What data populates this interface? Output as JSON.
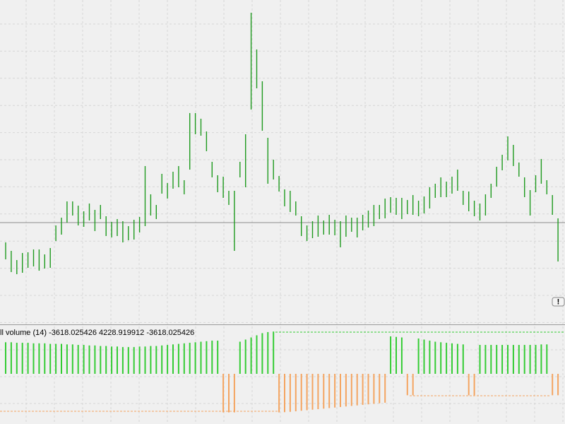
{
  "chart_data": [
    {
      "type": "ohlc",
      "color": "#1e9a1e",
      "ylim": [
        0,
        455
      ],
      "price_line": 140,
      "price_line_color": "#8a8a8a",
      "high": [
        112,
        100,
        87,
        97,
        98,
        102,
        102,
        95,
        104,
        136,
        147,
        170,
        170,
        164,
        156,
        167,
        158,
        165,
        149,
        141,
        145,
        142,
        135,
        144,
        148,
        220,
        180,
        165,
        209,
        196,
        212,
        220,
        200,
        295,
        295,
        287,
        269,
        226,
        207,
        205,
        185,
        185,
        226,
        265,
        437,
        385,
        340,
        260,
        229,
        206,
        187,
        185,
        170,
        149,
        136,
        142,
        150,
        143,
        151,
        144,
        142,
        150,
        147,
        147,
        151,
        157,
        165,
        165,
        174,
        176,
        175,
        175,
        172,
        179,
        171,
        177,
        190,
        195,
        204,
        198,
        205,
        215,
        185,
        184,
        171,
        167,
        180,
        195,
        219,
        236,
        262,
        250,
        225,
        204,
        186,
        207,
        230,
        200,
        179,
        146
      ],
      "low": [
        88,
        70,
        67,
        69,
        76,
        78,
        72,
        75,
        76,
        114,
        123,
        140,
        150,
        136,
        134,
        143,
        128,
        145,
        121,
        119,
        121,
        112,
        115,
        116,
        126,
        135,
        150,
        145,
        181,
        174,
        188,
        190,
        180,
        215,
        265,
        263,
        241,
        204,
        183,
        175,
        165,
        100,
        204,
        190,
        300,
        330,
        270,
        195,
        201,
        184,
        163,
        155,
        150,
        121,
        114,
        118,
        120,
        123,
        123,
        122,
        105,
        120,
        127,
        119,
        129,
        133,
        135,
        145,
        146,
        154,
        151,
        145,
        152,
        151,
        149,
        153,
        160,
        175,
        176,
        176,
        181,
        185,
        165,
        156,
        149,
        143,
        150,
        175,
        191,
        214,
        228,
        220,
        205,
        176,
        150,
        183,
        195,
        180,
        151,
        85
      ]
    },
    {
      "type": "histogram",
      "title": "ll volume (14) -3618.025426 4228.919912 -3618.025426",
      "ylim": [
        -4554,
        4422
      ],
      "positive_color": "#33cc33",
      "negative_color": "#f4a460",
      "values": [
        2950,
        2950,
        2900,
        2900,
        2900,
        2850,
        2850,
        2850,
        2800,
        2800,
        2800,
        2750,
        2750,
        2700,
        2700,
        2650,
        2650,
        2600,
        2600,
        2550,
        2550,
        2500,
        2500,
        2500,
        2550,
        2550,
        2600,
        2600,
        2650,
        2700,
        2750,
        2800,
        2850,
        2900,
        2950,
        3000,
        3050,
        3100,
        3100,
        -3600,
        -3600,
        -3600,
        3000,
        3200,
        3400,
        3600,
        3800,
        3900,
        3950,
        -3600,
        -3580,
        -3550,
        -3500,
        -3450,
        -3400,
        -3350,
        -3300,
        -3250,
        -3200,
        -3150,
        -3100,
        -3050,
        -3000,
        -2950,
        -2900,
        -2850,
        -2800,
        -2750,
        -2700,
        3500,
        3450,
        3400,
        -2000,
        -2000,
        3300,
        3200,
        3100,
        3000,
        2950,
        2900,
        2850,
        2800,
        2750,
        -2000,
        -2000,
        2700,
        2700,
        2700,
        2700,
        2700,
        2700,
        2700,
        2700,
        2700,
        2700,
        2700,
        2750,
        2750,
        -2000,
        -2000
      ]
    }
  ],
  "button": "!"
}
